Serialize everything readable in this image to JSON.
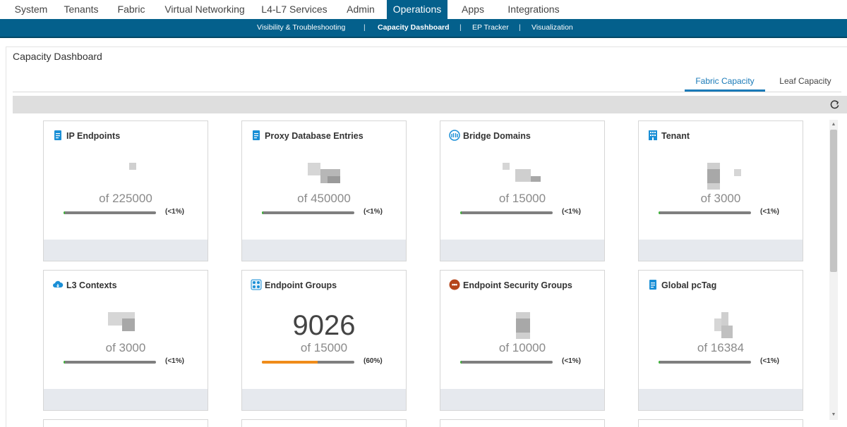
{
  "topnav": {
    "tabs": [
      {
        "label": "System"
      },
      {
        "label": "Tenants"
      },
      {
        "label": "Fabric"
      },
      {
        "label": "Virtual Networking"
      },
      {
        "label": "L4-L7 Services"
      },
      {
        "label": "Admin"
      },
      {
        "label": "Operations",
        "active": true
      },
      {
        "label": "Apps"
      },
      {
        "label": "Integrations"
      }
    ]
  },
  "subnav": {
    "items": [
      {
        "label": "Visibility & Troubleshooting"
      },
      {
        "label": "Capacity Dashboard",
        "active": true
      },
      {
        "label": "EP Tracker"
      },
      {
        "label": "Visualization"
      }
    ],
    "separator": "|"
  },
  "page": {
    "title": "Capacity Dashboard",
    "capacity_tabs": [
      {
        "label": "Fabric Capacity",
        "active": true
      },
      {
        "label": "Leaf Capacity"
      }
    ]
  },
  "colors": {
    "accent": "#04608c",
    "active_tab": "#1a7ab8",
    "bar_track": "#7f7f7f",
    "bar_low": "#3fb43a",
    "bar_mid": "#f08c1a"
  },
  "cards": [
    {
      "title": "IP Endpoints",
      "icon": "document-icon",
      "count": "",
      "of": "of 225000",
      "pct": "(<1%)",
      "usage": 0.01
    },
    {
      "title": "Proxy Database Entries",
      "icon": "document-icon",
      "count": "",
      "of": "of 450000",
      "pct": "(<1%)",
      "usage": 0.01
    },
    {
      "title": "Bridge Domains",
      "icon": "bridge-domain-icon",
      "count": "",
      "of": "of 15000",
      "pct": "(<1%)",
      "usage": 0.01
    },
    {
      "title": "Tenant",
      "icon": "building-icon",
      "count": "",
      "of": "of 3000",
      "pct": "(<1%)",
      "usage": 0.01
    },
    {
      "title": "L3 Contexts",
      "icon": "cloud-icon",
      "count": "",
      "of": "of 3000",
      "pct": "(<1%)",
      "usage": 0.01
    },
    {
      "title": "Endpoint Groups",
      "icon": "endpoint-groups-icon",
      "count": "9026",
      "of": "of 15000",
      "pct": "(60%)",
      "usage": 0.6
    },
    {
      "title": "Endpoint Security Groups",
      "icon": "security-group-icon",
      "count": "",
      "of": "of 10000",
      "pct": "(<1%)",
      "usage": 0.01
    },
    {
      "title": "Global pcTag",
      "icon": "document-icon",
      "count": "",
      "of": "of 16384",
      "pct": "(<1%)",
      "usage": 0.01
    }
  ]
}
